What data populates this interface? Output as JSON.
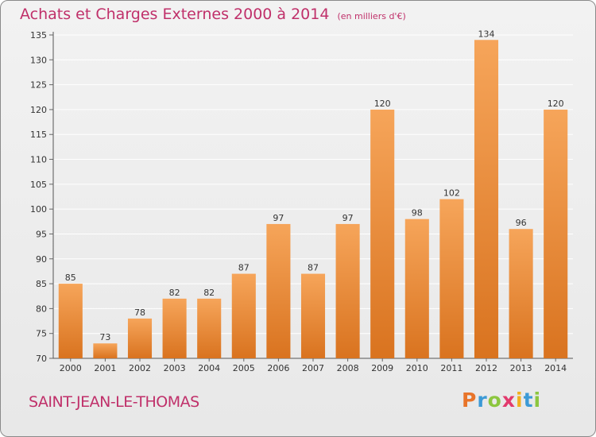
{
  "header": {
    "title": "Achats et Charges Externes 2000 à 2014",
    "subtitle": "(en milliers d'€)"
  },
  "footer": {
    "commune": "SAINT-JEAN-LE-THOMAS",
    "logo_letters": [
      "P",
      "r",
      "o",
      "x",
      "i",
      "t",
      "i"
    ],
    "logo_colors": [
      "#e8742a",
      "#3c9ad6",
      "#8cc63f",
      "#e23a6d",
      "#f2b01e",
      "#3c9ad6",
      "#8cc63f"
    ]
  },
  "colors": {
    "title": "#c0306a",
    "bar_light": "#f6a55a",
    "bar_dark": "#d9731f",
    "grid": "#ffffff"
  },
  "chart_data": {
    "type": "bar",
    "categories": [
      "2000",
      "2001",
      "2002",
      "2003",
      "2004",
      "2005",
      "2006",
      "2007",
      "2008",
      "2009",
      "2010",
      "2011",
      "2012",
      "2013",
      "2014"
    ],
    "values": [
      85,
      73,
      78,
      82,
      82,
      87,
      97,
      87,
      97,
      120,
      98,
      102,
      134,
      96,
      120
    ],
    "yticks": [
      70,
      75,
      80,
      85,
      90,
      95,
      100,
      105,
      110,
      115,
      120,
      125,
      130,
      135
    ],
    "ylim": [
      70,
      135
    ],
    "grid": true,
    "title": "Achats et Charges Externes 2000 à 2014",
    "xlabel": "",
    "ylabel": ""
  }
}
